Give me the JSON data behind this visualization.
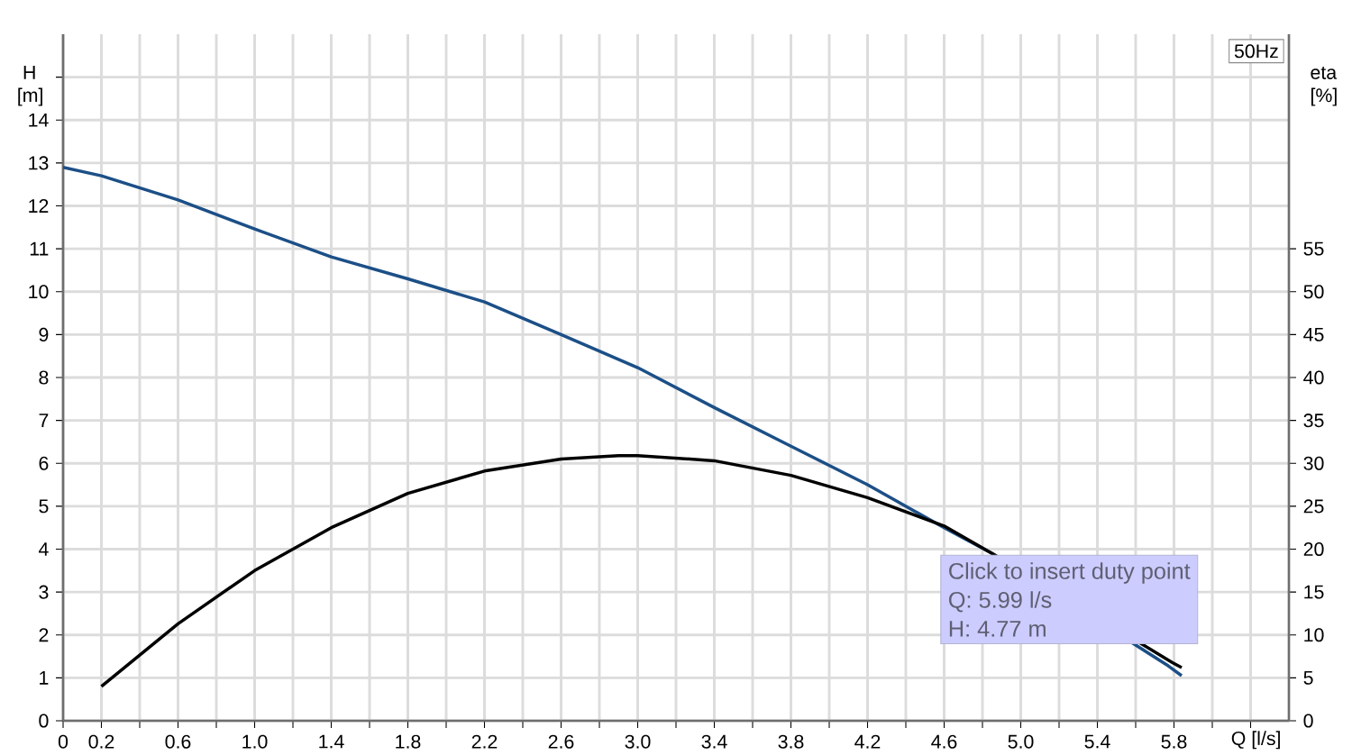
{
  "chart_data": {
    "type": "line",
    "xlabel": "Q [l/s]",
    "ylabel": "H [m]",
    "y2label": "eta [%]",
    "annotations": [
      "50Hz",
      "Click to insert duty point",
      "Q: 5.99 l/s",
      "H: 4.77 m"
    ],
    "series": [
      {
        "color": "#1c4f87",
        "x": [
          0,
          0.2,
          0.6,
          1.0,
          1.4,
          1.8,
          2.2,
          2.6,
          3.0,
          3.4,
          3.8,
          4.2,
          4.6,
          4.85,
          5.77,
          5.84
        ],
        "values": [
          12.9,
          12.7,
          12.14,
          11.46,
          10.81,
          10.3,
          9.76,
          9.0,
          8.23,
          7.3,
          6.4,
          5.5,
          4.5,
          3.9,
          1.28,
          1.05
        ]
      },
      {
        "color": "#000000",
        "axis": "y2",
        "x": [
          0.2,
          0.6,
          1.0,
          1.4,
          1.8,
          2.2,
          2.6,
          2.9,
          3.0,
          3.4,
          3.8,
          4.2,
          4.6,
          4.85,
          5.79,
          5.84
        ],
        "values": [
          4,
          11.3,
          17.5,
          22.5,
          26.5,
          29.1,
          30.5,
          30.9,
          30.9,
          30.3,
          28.6,
          26.0,
          22.7,
          19.5,
          6.8,
          6.2
        ]
      }
    ],
    "xlim": [
      0,
      6.4
    ],
    "xticks": [
      0,
      0.2,
      {
        "value": 0.4,
        "label": null
      },
      0.6,
      {
        "value": 0.8,
        "label": null
      },
      {
        "value": 1.0,
        "label": "1.0"
      },
      {
        "value": 1.2,
        "label": null
      },
      1.4,
      {
        "value": 1.6,
        "label": null
      },
      1.8,
      {
        "value": 2.0,
        "label": null
      },
      2.2,
      {
        "value": 2.4,
        "label": null
      },
      2.6,
      {
        "value": 2.8,
        "label": null
      },
      {
        "value": 3.0,
        "label": "3.0"
      },
      {
        "value": 3.2,
        "label": null
      },
      3.4,
      {
        "value": 3.6,
        "label": null
      },
      3.8,
      {
        "value": 4.0,
        "label": null
      },
      4.2,
      {
        "value": 4.4,
        "label": null
      },
      4.6,
      {
        "value": 4.8,
        "label": null
      },
      {
        "value": 5.0,
        "label": "5.0"
      },
      {
        "value": 5.2,
        "label": null
      },
      5.4,
      {
        "value": 5.6,
        "label": null
      },
      5.8,
      {
        "value": 6.0,
        "label": null
      },
      {
        "value": 6.2,
        "label": null
      }
    ],
    "ylim": [
      0,
      16
    ],
    "yticks": [
      0,
      1,
      2,
      3,
      4,
      5,
      6,
      7,
      8,
      9,
      10,
      11,
      12,
      13,
      14,
      {
        "value": 15,
        "label": null
      }
    ],
    "y2lim": [
      0,
      80
    ],
    "y2ticks": [
      0,
      5,
      10,
      15,
      20,
      25,
      30,
      35,
      40,
      45,
      50,
      55
    ],
    "grid": true,
    "marker": "none",
    "line_style": "solid"
  }
}
